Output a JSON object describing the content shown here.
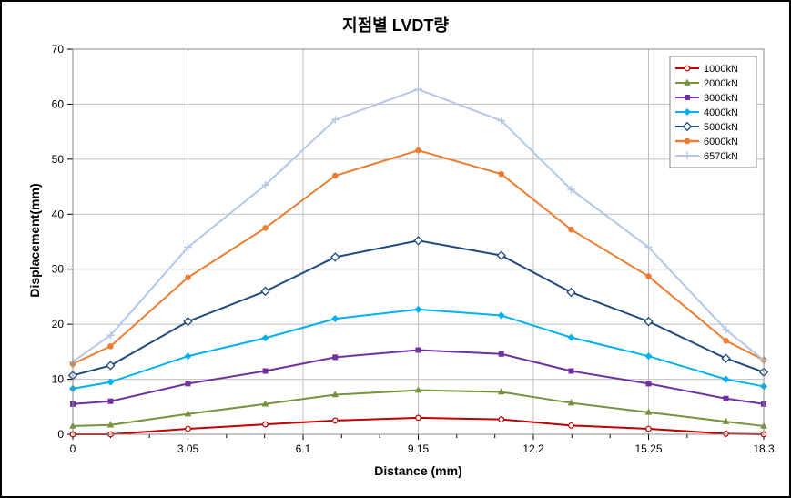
{
  "chart": {
    "type": "line",
    "title": "지점별 LVDT량",
    "title_fontsize": 18,
    "title_weight": "bold",
    "xlabel": "Distance (mm)",
    "ylabel": "Displacement(mm)",
    "label_fontsize": 14,
    "label_weight": "bold",
    "tick_fontsize": 12,
    "background_color": "#ffffff",
    "border_color": "#000000",
    "grid_color": "#bfbfbf",
    "plot_border_color": "#888888",
    "x_values": [
      0,
      1,
      3.05,
      5.1,
      6.95,
      9.15,
      11.35,
      13.2,
      15.25,
      17.3,
      18.3
    ],
    "x_ticks": [
      0,
      3.05,
      6.1,
      9.15,
      12.2,
      15.25,
      18.3
    ],
    "x_tick_labels": [
      "0",
      "3.05",
      "6.1",
      "9.15",
      "12.2",
      "15.25",
      "18.3"
    ],
    "xlim": [
      0,
      18.3
    ],
    "y_ticks": [
      0,
      10,
      20,
      30,
      40,
      50,
      60,
      70
    ],
    "y_tick_labels": [
      "0",
      "10",
      "20",
      "30",
      "40",
      "50",
      "60",
      "70"
    ],
    "ylim": [
      0,
      70
    ],
    "grid_on": true,
    "minor_x_ticks": [
      1,
      2.03,
      4.07,
      5.08,
      7.12,
      8.13,
      10.17,
      11.18,
      13.22,
      14.23,
      16.27,
      17.28
    ],
    "legend_position": "top-right",
    "legend_border_color": "#888888",
    "legend_bg": "#ffffff",
    "legend_fontsize": 11,
    "series": [
      {
        "name": "1000kN",
        "color": "#c00000",
        "marker": "circle-open",
        "marker_size": 5,
        "line_width": 2,
        "values": [
          0,
          0,
          1.0,
          1.8,
          2.5,
          3.0,
          2.7,
          1.6,
          1.0,
          0.1,
          0
        ]
      },
      {
        "name": "2000kN",
        "color": "#77933c",
        "marker": "triangle",
        "marker_size": 5,
        "line_width": 2,
        "values": [
          1.5,
          1.7,
          3.7,
          5.5,
          7.2,
          8.0,
          7.7,
          5.7,
          4.0,
          2.3,
          1.5
        ]
      },
      {
        "name": "3000kN",
        "color": "#7030a0",
        "marker": "square",
        "marker_size": 5,
        "line_width": 2,
        "values": [
          5.5,
          6.0,
          9.2,
          11.5,
          14.0,
          15.3,
          14.6,
          11.5,
          9.2,
          6.5,
          5.5
        ]
      },
      {
        "name": "4000kN",
        "color": "#00b0f0",
        "marker": "diamond",
        "marker_size": 5,
        "line_width": 2,
        "values": [
          8.3,
          9.5,
          14.2,
          17.5,
          21.0,
          22.7,
          21.6,
          17.6,
          14.2,
          10.0,
          8.7
        ]
      },
      {
        "name": "5000kN",
        "color": "#1f497d",
        "marker": "diamond-open",
        "marker_size": 6,
        "line_width": 2,
        "values": [
          10.7,
          12.5,
          20.5,
          26.0,
          32.2,
          35.2,
          32.5,
          25.8,
          20.5,
          13.8,
          11.3
        ]
      },
      {
        "name": "6000kN",
        "color": "#ed7d31",
        "marker": "circle",
        "marker_size": 5,
        "line_width": 2.5,
        "values": [
          12.8,
          16.0,
          28.5,
          37.5,
          47.0,
          51.6,
          47.3,
          37.2,
          28.7,
          17.0,
          13.5
        ]
      },
      {
        "name": "6570kN",
        "color": "#b4c7e7",
        "marker": "plus",
        "marker_size": 6,
        "line_width": 2,
        "values": [
          13.2,
          18.0,
          34.0,
          45.3,
          57.2,
          62.7,
          57.0,
          44.5,
          34.0,
          19.0,
          13.5
        ]
      }
    ]
  }
}
